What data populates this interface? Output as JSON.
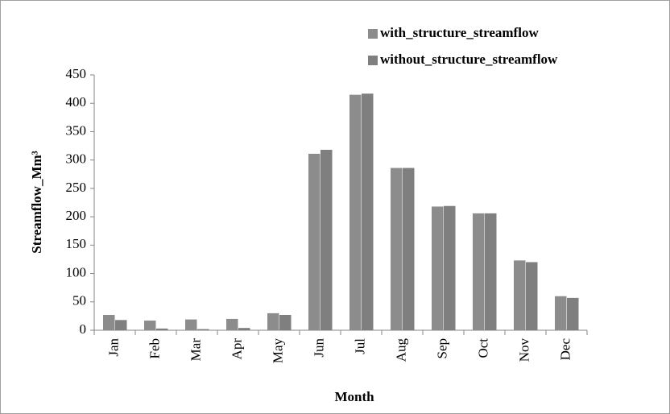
{
  "chart_data": {
    "type": "bar",
    "categories": [
      "Jan",
      "Feb",
      "Mar",
      "Apr",
      "May",
      "Jun",
      "Jul",
      "Aug",
      "Sep",
      "Oct",
      "Nov",
      "Dec"
    ],
    "series": [
      {
        "name": "with_structure_streamflow",
        "color": "#8c8c8c",
        "values": [
          27,
          17,
          19,
          20,
          30,
          311,
          415,
          286,
          218,
          206,
          123,
          60
        ]
      },
      {
        "name": "without_structure_streamflow",
        "color": "#7f7f7f",
        "values": [
          18,
          3,
          2,
          4,
          27,
          318,
          417,
          286,
          219,
          206,
          120,
          57
        ]
      }
    ],
    "x_label": "Month",
    "y_label": "Streamflow_Mm³",
    "ylim": [
      0,
      450
    ],
    "yticks": [
      0,
      50,
      100,
      150,
      200,
      250,
      300,
      350,
      400,
      450
    ],
    "grid": false,
    "legend": "top-right"
  }
}
